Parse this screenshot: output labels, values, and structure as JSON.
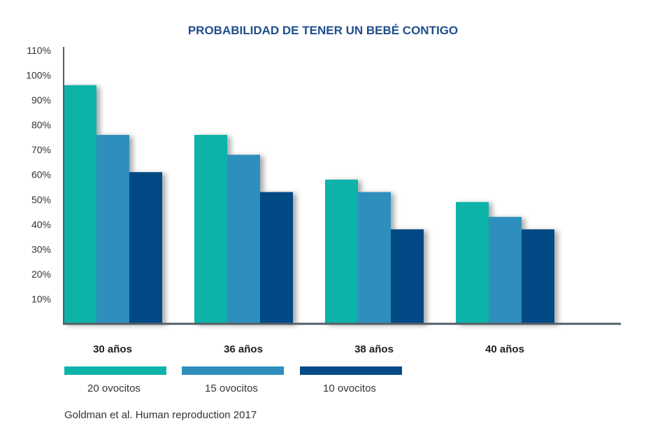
{
  "chart_data": {
    "type": "bar",
    "title": "PROBABILIDAD DE TENER UN BEBÉ CONTIGO",
    "categories": [
      "30 años",
      "36 años",
      "38 años",
      "40 años"
    ],
    "series": [
      {
        "name": "20 ovocitos",
        "values": [
          96,
          76,
          58,
          49
        ],
        "color": "#0db3a8"
      },
      {
        "name": "15 ovocitos",
        "values": [
          76,
          68,
          53,
          43
        ],
        "color": "#2e8fbe"
      },
      {
        "name": "10 ovocitos",
        "values": [
          61,
          53,
          38,
          38
        ],
        "color": "#054a85"
      }
    ],
    "yticks": [
      "10%",
      "20%",
      "30%",
      "40%",
      "50%",
      "60%",
      "70%",
      "80%",
      "90%",
      "100%",
      "110%"
    ],
    "ylim": [
      0,
      110
    ],
    "ylabel": "",
    "xlabel": "",
    "grid": false,
    "legend_position": "bottom-left",
    "source": "Goldman et al. Human reproduction 2017",
    "colors": {
      "title": "#1f4e8c",
      "axis": "#555f66"
    }
  }
}
